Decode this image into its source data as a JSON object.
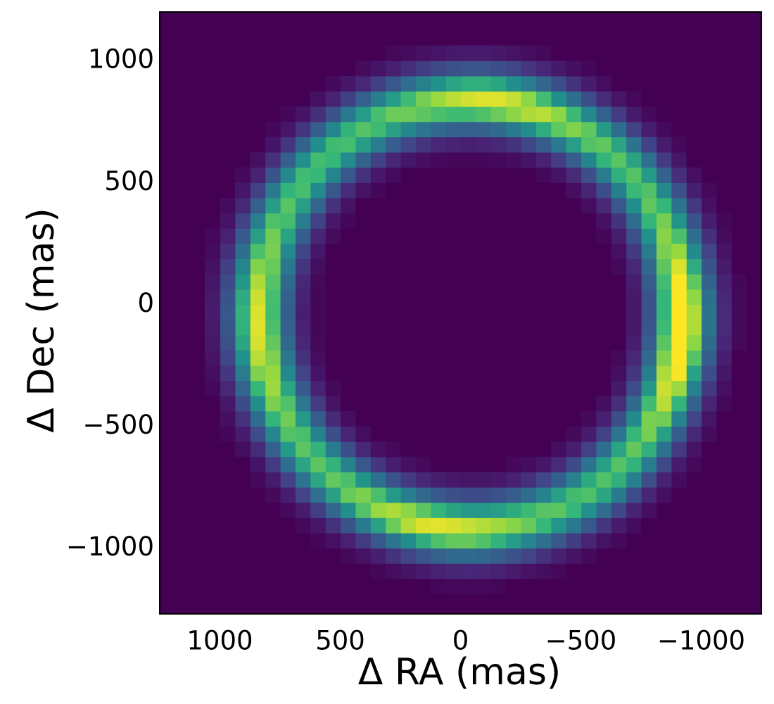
{
  "chart_data": {
    "type": "heatmap",
    "title": "",
    "xlabel": "Δ RA (mas)",
    "ylabel": "Δ Dec (mas)",
    "x_axis_inverted": true,
    "xlim": [
      1250,
      -1250
    ],
    "ylim": [
      -1270,
      1200
    ],
    "xticks": [
      1000,
      500,
      0,
      -500,
      -1000
    ],
    "yticks": [
      -1000,
      -500,
      0,
      500,
      1000
    ],
    "xtick_labels": [
      "1000",
      "500",
      "0",
      "−500",
      "−1000"
    ],
    "ytick_labels": [
      "−1000",
      "−500",
      "0",
      "500",
      "1000"
    ],
    "grid": false,
    "colormap": "viridis",
    "background_color": "#440154",
    "bin_size_mas": 62.5,
    "ring": {
      "center_ra_mas": -40,
      "center_dec_mas": -40,
      "semi_axis_ra_mas": 880,
      "semi_axis_dec_mas": 880,
      "width_sigma_mas": 90,
      "peak_location": {
        "ra_mas": -900,
        "dec_mas": -100
      },
      "secondary_peaks": [
        {
          "ra_mas": -150,
          "dec_mas": 830
        },
        {
          "ra_mas": 100,
          "dec_mas": -930
        },
        {
          "ra_mas": 880,
          "dec_mas": -100
        }
      ]
    }
  }
}
